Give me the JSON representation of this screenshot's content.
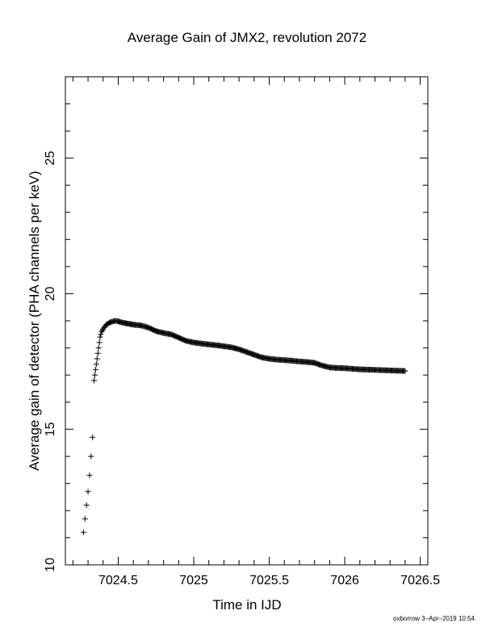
{
  "chart_data": {
    "type": "scatter",
    "title": "Average Gain of JMX2, revolution 2072",
    "xlabel": "Time in IJD",
    "ylabel": "Average gain of detector (PHA channels per keV)",
    "xlim": [
      7024.15,
      7026.55
    ],
    "ylim": [
      10,
      28
    ],
    "x_ticks": [
      7024.5,
      7025,
      7025.5,
      7026,
      7026.5
    ],
    "x_tick_labels": [
      "7024.5",
      "7025",
      "7025.5",
      "7026",
      "7026.5"
    ],
    "y_ticks": [
      10,
      15,
      20,
      25
    ],
    "y_tick_labels": [
      "10",
      "15",
      "20",
      "25"
    ],
    "grid": false,
    "marker": "plus",
    "points": {
      "x": [
        7024.27,
        7024.28,
        7024.29,
        7024.3,
        7024.31,
        7024.32,
        7024.33,
        7024.34,
        7024.35,
        7024.36,
        7024.37,
        7024.38,
        7024.39,
        7024.4,
        7024.42,
        7024.44,
        7024.46,
        7024.48,
        7024.5,
        7024.53,
        7024.56,
        7024.6,
        7024.65,
        7024.7,
        7024.75,
        7024.8,
        7024.85,
        7024.9,
        7024.95,
        7025.0,
        7025.05,
        7025.1,
        7025.15,
        7025.2,
        7025.25,
        7025.3,
        7025.35,
        7025.4,
        7025.45,
        7025.5,
        7025.55,
        7025.6,
        7025.65,
        7025.7,
        7025.75,
        7025.8,
        7025.85,
        7025.9,
        7025.95,
        7026.0,
        7026.05,
        7026.1,
        7026.15,
        7026.2,
        7026.25,
        7026.3,
        7026.35,
        7026.4
      ],
      "y": [
        11.2,
        11.7,
        12.2,
        12.7,
        13.3,
        14.0,
        14.7,
        16.8,
        17.2,
        17.6,
        18.0,
        18.4,
        18.6,
        18.7,
        18.85,
        18.93,
        18.97,
        19.0,
        18.98,
        18.93,
        18.9,
        18.86,
        18.83,
        18.75,
        18.62,
        18.55,
        18.5,
        18.38,
        18.26,
        18.2,
        18.16,
        18.13,
        18.1,
        18.06,
        18.02,
        17.95,
        17.85,
        17.75,
        17.65,
        17.6,
        17.57,
        17.55,
        17.53,
        17.5,
        17.48,
        17.45,
        17.35,
        17.28,
        17.26,
        17.25,
        17.23,
        17.21,
        17.2,
        17.19,
        17.18,
        17.17,
        17.16,
        17.15
      ]
    }
  },
  "footer": "oxborrow 3–Apr–2019 10:54"
}
